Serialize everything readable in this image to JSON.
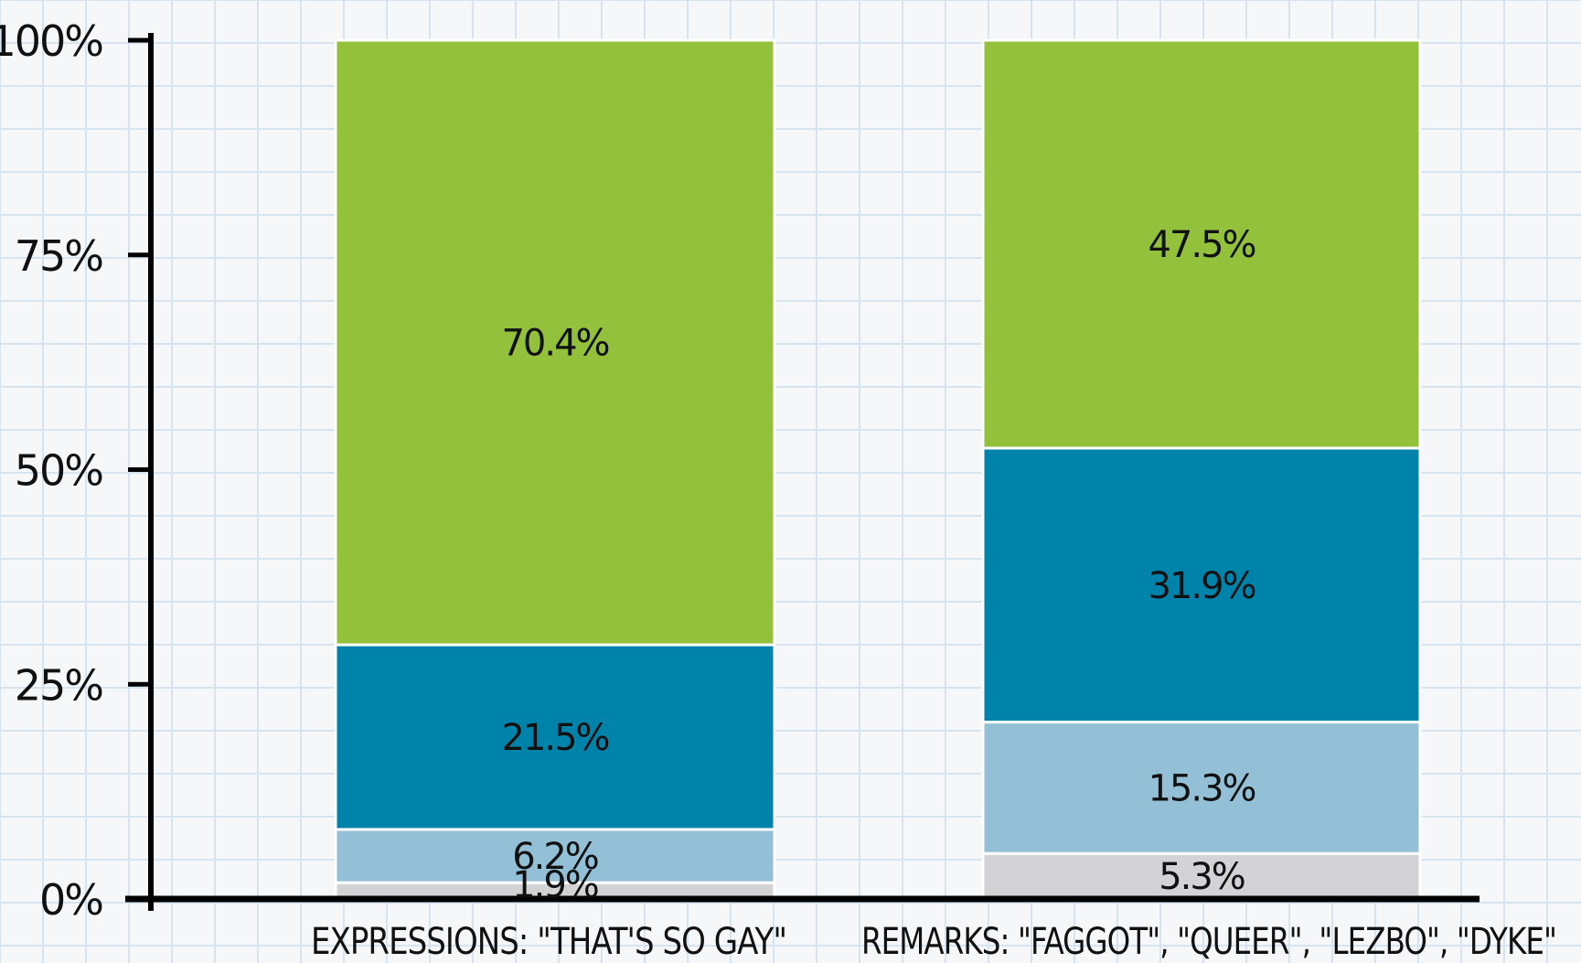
{
  "chart_data": {
    "type": "bar",
    "stacked": true,
    "categories": [
      "EXPRESSIONS: \"THAT'S SO GAY\"",
      "REMARKS: \"FAGGOT\", \"QUEER\", \"LEZBO\", \"DYKE\""
    ],
    "series": [
      {
        "color": "#d3d3d5",
        "values": [
          1.9,
          5.3
        ],
        "labels": [
          "1.9%",
          "5.3%"
        ]
      },
      {
        "color": "#93c0d6",
        "values": [
          6.2,
          15.3
        ],
        "labels": [
          "6.2%",
          "15.3%"
        ]
      },
      {
        "color": "#0083ab",
        "values": [
          21.5,
          31.9
        ],
        "labels": [
          "21.5%",
          "31.9%"
        ]
      },
      {
        "color": "#93c13b",
        "values": [
          70.4,
          47.5
        ],
        "labels": [
          "70.4%",
          "47.5%"
        ]
      }
    ],
    "yticks": [
      0,
      25,
      50,
      75,
      100
    ],
    "ytick_labels": [
      "0%",
      "25%",
      "50%",
      "75%",
      "100%"
    ],
    "ylim": [
      0,
      100
    ],
    "grid": true,
    "background_color": "#f5f7f8",
    "grid_color": "#d6e4ef"
  }
}
